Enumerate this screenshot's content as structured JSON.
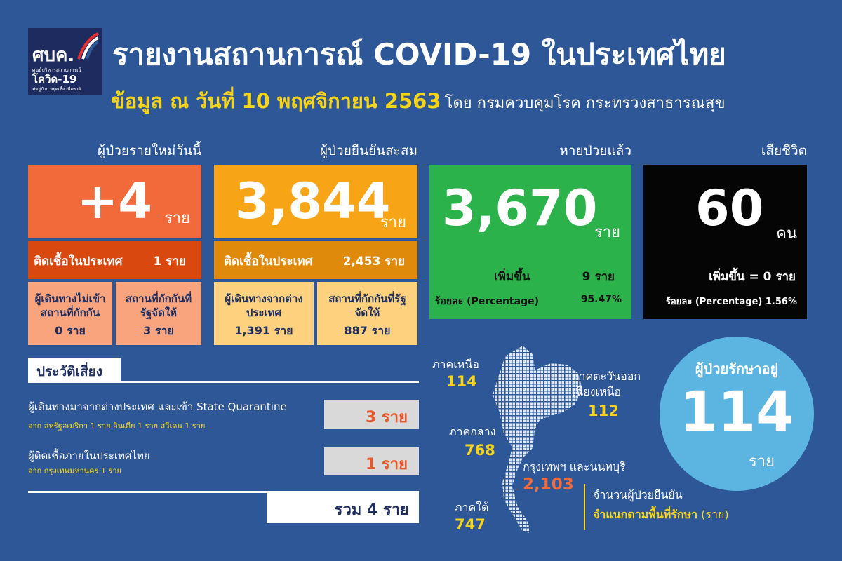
{
  "logo": {
    "name": "ศบค.",
    "line1": "ศูนย์บริหารสถานการณ์",
    "line2": "โควิด-19",
    "tagline": "#อยู่บ้าน หยุดเชื้อ เพื่อชาติ"
  },
  "header": {
    "title": "รายงานสถานการณ์ COVID-19 ในประเทศไทย",
    "subtitle": "ข้อมูล ณ วันที่ 10 พฤศจิกายน 2563",
    "source": "โดย กรมควบคุมโรค กระทรวงสาธารณสุข"
  },
  "new_cases": {
    "label": "ผู้ป่วยรายใหม่วันนี้",
    "value": "+4",
    "unit": "ราย",
    "domestic_label": "ติดเชื้อในประเทศ",
    "domestic_value": "1 ราย",
    "boxes": [
      {
        "label": "ผู้เดินทางไม่เข้าสถานที่กักกัน",
        "value": "0 ราย"
      },
      {
        "label": "สถานที่กักกันที่รัฐจัดให้",
        "value": "3 ราย"
      }
    ]
  },
  "cumulative": {
    "label": "ผู้ป่วยยืนยันสะสม",
    "value": "3,844",
    "unit": "ราย",
    "domestic_label": "ติดเชื้อในประเทศ",
    "domestic_value": "2,453 ราย",
    "boxes": [
      {
        "label": "ผู้เดินทางจากต่างประเทศ",
        "value": "1,391 ราย"
      },
      {
        "label": "สถานที่กักกันที่รัฐจัดให้",
        "value": "887 ราย"
      }
    ]
  },
  "recovered": {
    "label": "หายป่วยแล้ว",
    "value": "3,670",
    "unit": "ราย",
    "increase_label": "เพิ่มขึ้น",
    "increase_value": "9 ราย",
    "percent_label": "ร้อยละ (Percentage)",
    "percent_value": "95.47%"
  },
  "deaths": {
    "label": "เสียชีวิต",
    "value": "60",
    "unit": "คน",
    "increase": "เพิ่มขึ้น = 0 ราย",
    "percent": "ร้อยละ (Percentage) 1.56%"
  },
  "risk": {
    "heading": "ประวัติเสี่ยง",
    "items": [
      {
        "title": "ผู้เดินทางมาจากต่างประเทศ และเข้า State Quarantine",
        "detail": "จาก สหรัฐอเมริกา 1 ราย อินเดีย 1 ราย สวีเดน 1 ราย",
        "value": "3 ราย"
      },
      {
        "title": "ผู้ติดเชื้อภายในประเทศไทย",
        "detail": "จาก กรุงเทพมหานคร 1 ราย",
        "value": "1 ราย"
      }
    ],
    "total": "รวม 4 ราย"
  },
  "regions": [
    {
      "name": "ภาคเหนือ",
      "value": "114"
    },
    {
      "name": "ภาคตะวันออกเฉียงเหนือ",
      "value": "112"
    },
    {
      "name": "ภาคกลาง",
      "value": "768"
    },
    {
      "name": "กรุงเทพฯ และนนทบุรี",
      "value": "2,103"
    },
    {
      "name": "ภาคใต้",
      "value": "747"
    }
  ],
  "map_caption": {
    "line1": "จำนวนผู้ป่วยยืนยัน",
    "line2": "จำแนกตามพื้นที่รักษา",
    "unit": "(ราย)"
  },
  "in_treatment": {
    "label": "ผู้ป่วยรักษาอยู่",
    "value": "114",
    "unit": "ราย"
  }
}
